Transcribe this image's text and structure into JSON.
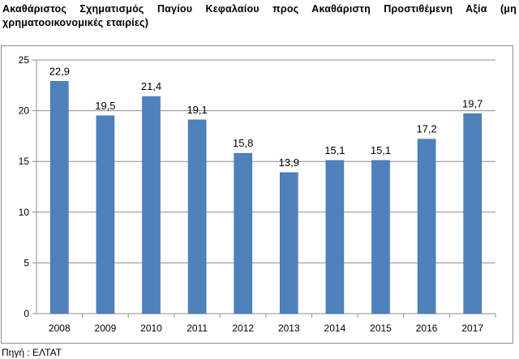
{
  "title": "Ακαθάριστος Σχηματισμός Παγίου Κεφαλαίου προς Ακαθάριστη Προστιθέμενη Αξία (μη χρηματοοικονομικές εταιρίες)",
  "source": "Πηγή : ΕΛΤΑΤ",
  "colors": {
    "bar": "#4f81bd",
    "bar_edge": "#3e6ea3",
    "grid": "#8c8c8c"
  },
  "chart_data": {
    "type": "bar",
    "categories": [
      "2008",
      "2009",
      "2010",
      "2011",
      "2012",
      "2013",
      "2014",
      "2015",
      "2016",
      "2017"
    ],
    "values": [
      22.9,
      19.5,
      21.4,
      19.1,
      15.8,
      13.9,
      15.1,
      15.1,
      17.2,
      19.7
    ],
    "value_labels": [
      "22,9",
      "19,5",
      "21,4",
      "19,1",
      "15,8",
      "13,9",
      "15,1",
      "15,1",
      "17,2",
      "19,7"
    ],
    "yticks": [
      0,
      5,
      10,
      15,
      20,
      25
    ],
    "ylim": [
      0,
      25
    ],
    "grid": true,
    "legend": "none"
  }
}
